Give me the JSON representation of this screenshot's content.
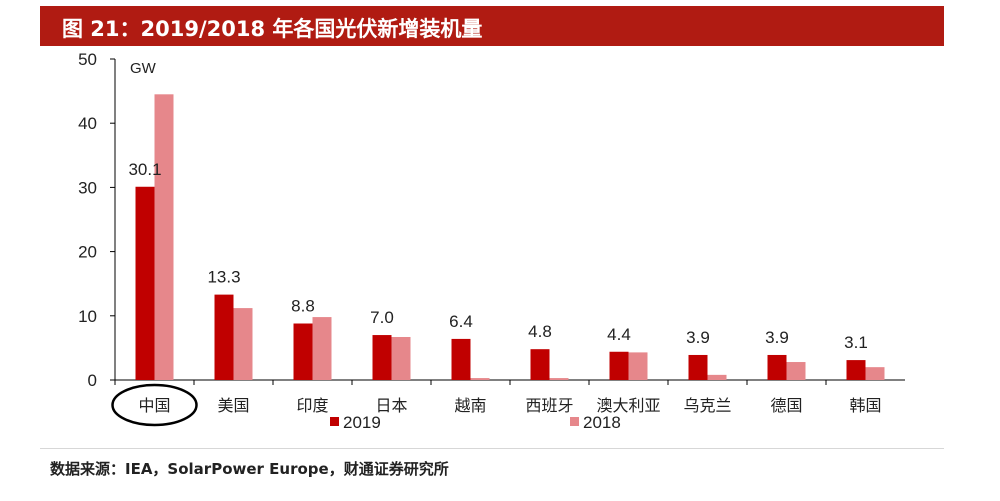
{
  "header": {
    "title": "图 21：2019/2018 年各国光伏新增装机量"
  },
  "footer": {
    "source": "数据来源：IEA，SolarPower Europe，财通证券研究所"
  },
  "colors": {
    "title_bar": "#b01b12",
    "series_2019": "#c00000",
    "series_2018": "#e6878b"
  },
  "chart_data": {
    "type": "bar",
    "unit": "GW",
    "categories": [
      "中国",
      "美国",
      "印度",
      "日本",
      "越南",
      "西班牙",
      "澳大利亚",
      "乌克兰",
      "德国",
      "韩国"
    ],
    "series": [
      {
        "name": "2019",
        "values": [
          30.1,
          13.3,
          8.8,
          7.0,
          6.4,
          4.8,
          4.4,
          3.9,
          3.9,
          3.1
        ],
        "labels": [
          "30.1",
          "13.3",
          "8.8",
          "7.0",
          "6.4",
          "4.8",
          "4.4",
          "3.9",
          "3.9",
          "3.1"
        ]
      },
      {
        "name": "2018",
        "values": [
          44.5,
          11.2,
          9.8,
          6.7,
          0.3,
          0.3,
          4.3,
          0.8,
          2.8,
          2.0
        ]
      }
    ],
    "ylim": [
      0,
      50
    ],
    "yticks": [
      "0",
      "10",
      "20",
      "30",
      "40",
      "50"
    ],
    "highlighted_category": "中国",
    "legend_placement": "bottom-left",
    "grid": false
  }
}
